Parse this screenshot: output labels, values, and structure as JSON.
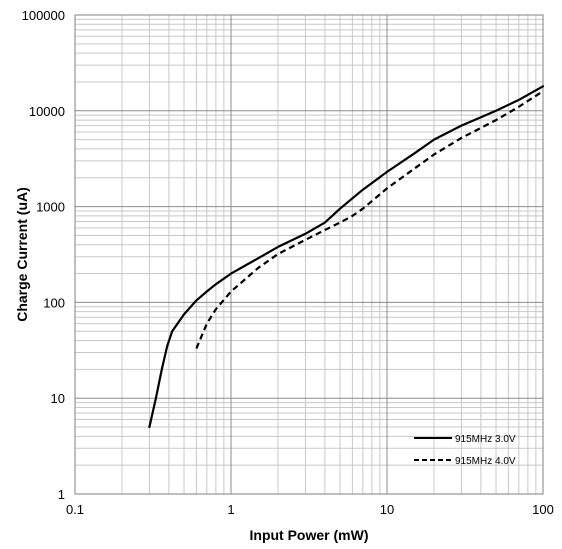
{
  "chart_data": {
    "type": "line",
    "title": "",
    "xlabel": "Input Power (mW)",
    "ylabel": "Charge Current (uA)",
    "xscale": "log",
    "yscale": "log",
    "xlim": [
      0.1,
      100
    ],
    "ylim": [
      1,
      100000
    ],
    "grid": true,
    "legend_position": "bottom-right",
    "x_ticks": [
      "0.1",
      "1",
      "10",
      "100"
    ],
    "y_ticks": [
      "1",
      "10",
      "100",
      "1000",
      "10000",
      "100000"
    ],
    "series": [
      {
        "name": "915MHz 3.0V",
        "style": "solid",
        "color": "#000000",
        "x": [
          0.3,
          0.33,
          0.36,
          0.39,
          0.42,
          0.5,
          0.6,
          0.7,
          0.8,
          1,
          1.5,
          2,
          3,
          4,
          5,
          7,
          10,
          15,
          20,
          30,
          50,
          70,
          100
        ],
        "y": [
          5,
          10,
          20,
          35,
          50,
          75,
          105,
          130,
          155,
          200,
          290,
          380,
          520,
          680,
          950,
          1500,
          2300,
          3600,
          5000,
          7000,
          10000,
          13000,
          18000
        ]
      },
      {
        "name": "915MHz 4.0V",
        "style": "dashed",
        "color": "#000000",
        "x": [
          0.6,
          0.65,
          0.7,
          0.8,
          1,
          1.5,
          2,
          3,
          4,
          5,
          6,
          7,
          10,
          15,
          20,
          30,
          50,
          70,
          100
        ],
        "y": [
          33,
          45,
          60,
          85,
          130,
          230,
          320,
          450,
          570,
          680,
          800,
          950,
          1550,
          2500,
          3500,
          5200,
          8000,
          11000,
          16000
        ]
      }
    ]
  }
}
